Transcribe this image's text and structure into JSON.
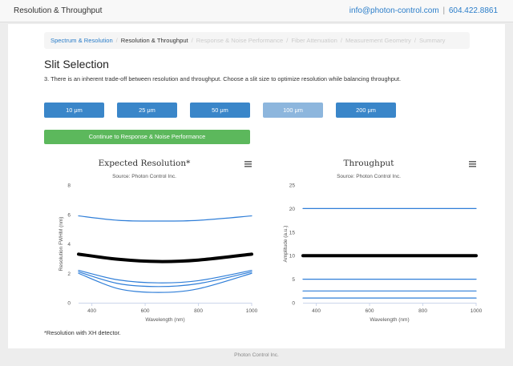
{
  "header": {
    "title": "Resolution & Throughput",
    "email": "info@photon-control.com",
    "separator": "|",
    "phone": "604.422.8861"
  },
  "breadcrumb": [
    {
      "label": "Spectrum & Resolution",
      "state": "link"
    },
    {
      "label": "Resolution & Throughput",
      "state": "active"
    },
    {
      "label": "Response & Noise Performance",
      "state": "disabled"
    },
    {
      "label": "Fiber Attenuation",
      "state": "disabled"
    },
    {
      "label": "Measurement Geometry",
      "state": "disabled"
    },
    {
      "label": "Summary",
      "state": "disabled"
    }
  ],
  "breadcrumb_separator": "/",
  "section": {
    "heading": "Slit Selection",
    "instructions": "3. There is an inherent trade-off between resolution and throughput. Choose a slit size to optimize resolution while balancing throughput."
  },
  "slit_options": [
    {
      "label": "10 μm",
      "selected": false
    },
    {
      "label": "25 μm",
      "selected": false
    },
    {
      "label": "50 μm",
      "selected": false
    },
    {
      "label": "100 μm",
      "selected": true
    },
    {
      "label": "200 μm",
      "selected": false
    }
  ],
  "continue_button": "Continue to Response & Noise Performance",
  "footnote": "*Resolution with XH detector.",
  "footer": "Photon Control Inc.",
  "colors": {
    "accent": "#3a86c9",
    "selected": "#8db6dd",
    "success": "#5cb85c",
    "series": "#2f7ed8",
    "highlight": "#000000"
  },
  "icons": {
    "chart_menu": "hamburger-menu-icon"
  },
  "chart_data": [
    {
      "type": "line",
      "title": "Expected Resolution*",
      "subtitle": "Source: Photon Control Inc.",
      "xlabel": "Wavelength (nm)",
      "ylabel": "Resolution FWHM (nm)",
      "xlim": [
        350,
        1000
      ],
      "ylim": [
        0,
        8
      ],
      "xticks": [
        400,
        600,
        800,
        1000
      ],
      "yticks": [
        0,
        2,
        4,
        6,
        8
      ],
      "grid": false,
      "legend": "none",
      "highlight_series": "100 μm",
      "series": [
        {
          "key": "200 μm",
          "x": [
            350,
            500,
            650,
            800,
            1000
          ],
          "y": [
            5.9,
            5.6,
            5.55,
            5.6,
            5.9
          ]
        },
        {
          "key": "100 μm",
          "x": [
            350,
            500,
            650,
            800,
            1000
          ],
          "y": [
            3.3,
            2.95,
            2.8,
            2.9,
            3.3
          ]
        },
        {
          "key": "50 μm",
          "x": [
            350,
            500,
            650,
            800,
            1000
          ],
          "y": [
            2.2,
            1.55,
            1.35,
            1.5,
            2.2
          ]
        },
        {
          "key": "25 μm",
          "x": [
            350,
            500,
            650,
            800,
            1000
          ],
          "y": [
            2.1,
            1.3,
            1.1,
            1.3,
            2.1
          ]
        },
        {
          "key": "10 μm",
          "x": [
            350,
            500,
            650,
            800,
            1000
          ],
          "y": [
            2.0,
            0.95,
            0.7,
            0.95,
            2.0
          ]
        }
      ]
    },
    {
      "type": "line",
      "title": "Throughput",
      "subtitle": "Source: Photon Control Inc.",
      "xlabel": "Wavelength (nm)",
      "ylabel": "Amplitude (a.u.)",
      "xlim": [
        350,
        1000
      ],
      "ylim": [
        0,
        25
      ],
      "xticks": [
        400,
        600,
        800,
        1000
      ],
      "yticks": [
        0,
        5,
        10,
        15,
        20,
        25
      ],
      "grid": false,
      "legend": "none",
      "highlight_series": "100 μm",
      "series": [
        {
          "key": "200 μm",
          "x": [
            350,
            1000
          ],
          "y": [
            20,
            20
          ]
        },
        {
          "key": "100 μm",
          "x": [
            350,
            1000
          ],
          "y": [
            10,
            10
          ]
        },
        {
          "key": "50 μm",
          "x": [
            350,
            1000
          ],
          "y": [
            5,
            5
          ]
        },
        {
          "key": "25 μm",
          "x": [
            350,
            1000
          ],
          "y": [
            2.5,
            2.5
          ]
        },
        {
          "key": "10 μm",
          "x": [
            350,
            1000
          ],
          "y": [
            1,
            1
          ]
        }
      ]
    }
  ]
}
